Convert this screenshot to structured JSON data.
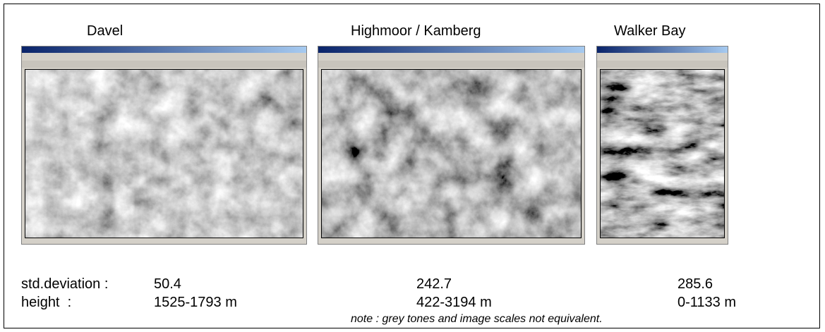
{
  "panels": [
    {
      "title": "Davel",
      "std_deviation": "50.4",
      "height": "1525-1793 m"
    },
    {
      "title": "Highmoor / Kamberg",
      "std_deviation": "242.7",
      "height": "422-3194 m"
    },
    {
      "title": "Walker Bay",
      "std_deviation": "285.6",
      "height": "0-1133 m"
    }
  ],
  "labels": {
    "std_deviation": "std.deviation :",
    "height": "height  :"
  },
  "note": "note : grey tones and image scales not equivalent."
}
